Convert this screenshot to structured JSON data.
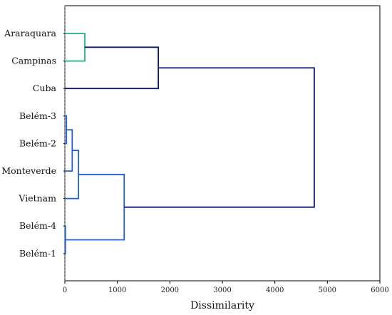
{
  "chart_data": {
    "type": "dendrogram",
    "xlabel": "Dissimilarity",
    "ylabel": "",
    "title": "",
    "xlim": [
      0,
      6000
    ],
    "xticks": [
      0,
      1000,
      2000,
      3000,
      4000,
      5000,
      6000
    ],
    "grid": false,
    "orientation": "horizontal",
    "leaves": [
      "Araraquara",
      "Campinas",
      "Cuba",
      "Belém-3",
      "Belém-2",
      "Monteverde",
      "Vietnam",
      "Belém-4",
      "Belém-1"
    ],
    "merges": [
      {
        "a": "Belém-4",
        "b": "Belém-1",
        "height": 10,
        "color": "#1f5fd6"
      },
      {
        "a": "Belém-3",
        "b": "Belém-2",
        "height": 30,
        "color": "#1f5fd6"
      },
      {
        "a": "Belém-3+Belém-2",
        "b": "Monteverde",
        "height": 140,
        "color": "#1f5fd6"
      },
      {
        "a": "Belém-3+Belém-2+Monteverde",
        "b": "Vietnam",
        "height": 260,
        "color": "#1f5fd6"
      },
      {
        "a": "Araraquara",
        "b": "Campinas",
        "height": 380,
        "color": "#1fb37a"
      },
      {
        "a": "Belém-3+Belém-2+Monteverde+Vietnam",
        "b": "Belém-4+Belém-1",
        "height": 1130,
        "color": "#1f5fd6"
      },
      {
        "a": "Araraquara+Campinas",
        "b": "Cuba",
        "height": 1780,
        "color": "#0d1a7a"
      },
      {
        "a": "Araraquara+Campinas+Cuba",
        "b": "Belém-3+Belém-2+Monteverde+Vietnam+Belém-4+Belém-1",
        "height": 4750,
        "color": "#0d1a7a"
      }
    ]
  }
}
